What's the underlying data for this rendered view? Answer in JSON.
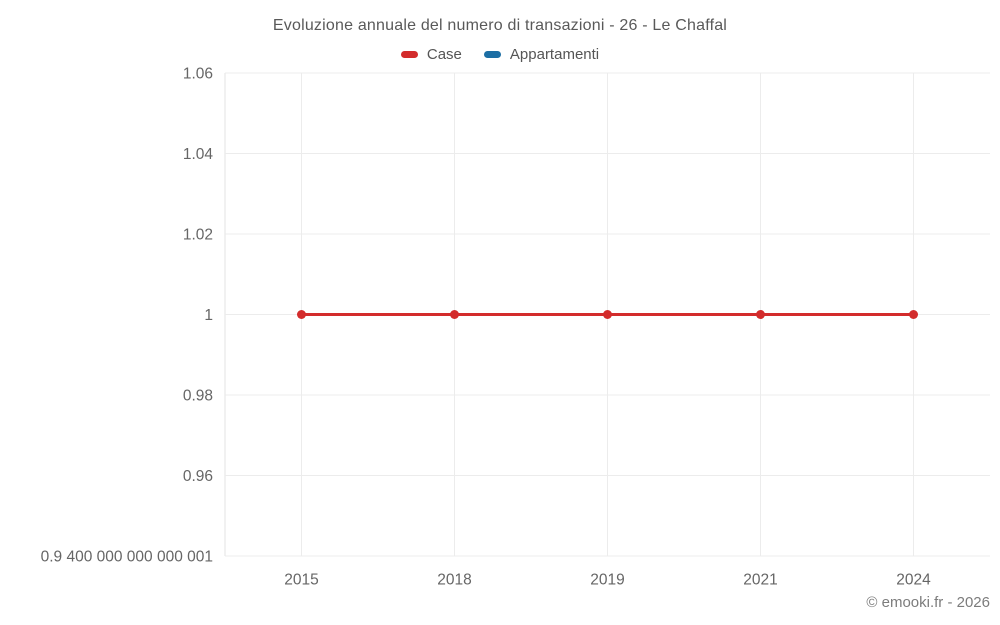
{
  "chart_data": {
    "type": "line",
    "title": "Evoluzione annuale del numero di transazioni - 26 - Le Chaffal",
    "categories": [
      "2015",
      "2018",
      "2019",
      "2021",
      "2024"
    ],
    "series": [
      {
        "name": "Case",
        "color": "#d32c2c",
        "values": [
          1,
          1,
          1,
          1,
          1
        ]
      },
      {
        "name": "Appartamenti",
        "color": "#1c6ea4",
        "values": []
      }
    ],
    "ylim": [
      0.9400000000000001,
      1.06
    ],
    "yticks": [
      {
        "value": 1.06,
        "label": "1.06"
      },
      {
        "value": 1.04,
        "label": "1.04"
      },
      {
        "value": 1.02,
        "label": "1.02"
      },
      {
        "value": 1.0,
        "label": "1"
      },
      {
        "value": 0.98,
        "label": "0.98"
      },
      {
        "value": 0.96,
        "label": "0.96"
      },
      {
        "value": 0.9400000000000001,
        "label": "0.9 400 000 000 000 001"
      }
    ],
    "grid": true,
    "legend_position": "top",
    "colors": {
      "gridline": "#ececec",
      "axis_line": "#e3e3e3",
      "tick_label": "#666666",
      "title_text": "#595959"
    }
  },
  "footer": {
    "credit": "© emooki.fr - 2026"
  }
}
